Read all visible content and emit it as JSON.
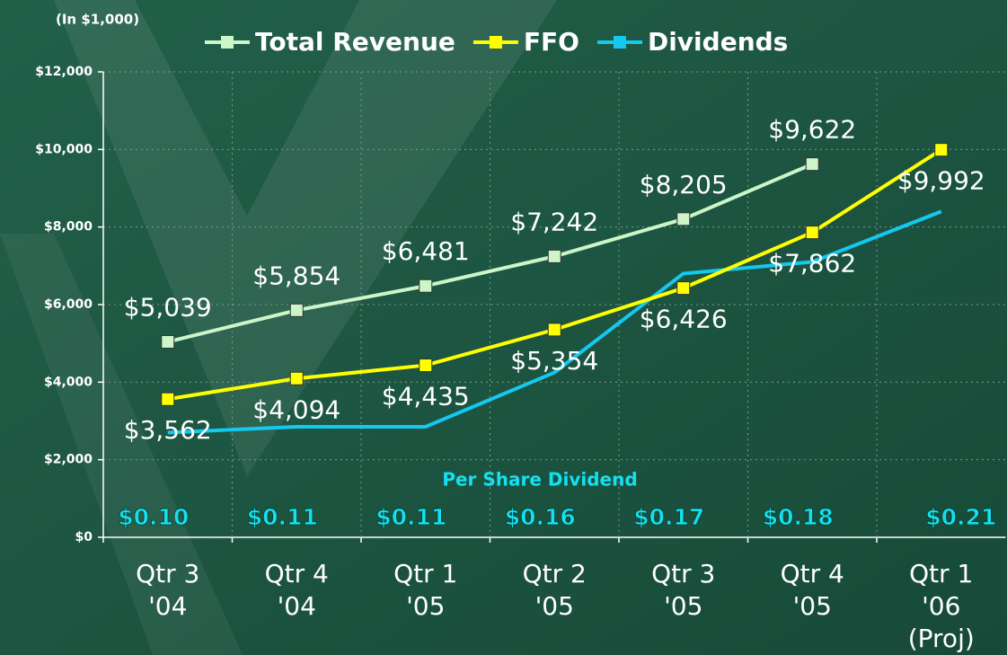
{
  "chart_data": {
    "type": "line",
    "unit_label": "(In $1,000)",
    "categories": [
      [
        "Qtr 3",
        "'04"
      ],
      [
        "Qtr 4",
        "'04"
      ],
      [
        "Qtr 1",
        "'05"
      ],
      [
        "Qtr 2",
        "'05"
      ],
      [
        "Qtr 3",
        "'05"
      ],
      [
        "Qtr 4",
        "'05"
      ],
      [
        "Qtr 1",
        "'06",
        "(Proj)"
      ]
    ],
    "series": [
      {
        "name": "Total Revenue",
        "color": "#ccf5c8",
        "values": [
          5039,
          5854,
          6481,
          7242,
          8205,
          9622,
          null
        ],
        "value_labels": [
          "$5,039",
          "$5,854",
          "$6,481",
          "$7,242",
          "$8,205",
          "$9,622",
          null
        ]
      },
      {
        "name": "FFO",
        "color": "#ffff00",
        "values": [
          3562,
          4094,
          4435,
          5354,
          6426,
          7862,
          9992
        ],
        "value_labels": [
          "$3,562",
          "$4,094",
          "$4,435",
          "$5,354",
          "$6,426",
          "$7,862",
          "$9,992"
        ]
      },
      {
        "name": "Dividends",
        "color": "#14c8f0",
        "values": [
          2700,
          2850,
          2850,
          4250,
          6800,
          7100,
          8400
        ]
      }
    ],
    "per_share_dividend": {
      "title": "Per Share Dividend",
      "values": [
        0.1,
        0.11,
        0.11,
        0.16,
        0.17,
        0.18,
        0.21
      ],
      "value_labels": [
        "$0.10",
        "$0.11",
        "$0.11",
        "$0.16",
        "$0.17",
        "$0.18",
        "$0.21"
      ]
    },
    "ylim": [
      0,
      12000
    ],
    "yticks": [
      {
        "value": 0,
        "label": "$0"
      },
      {
        "value": 2000,
        "label": "$2,000"
      },
      {
        "value": 4000,
        "label": "$4,000"
      },
      {
        "value": 6000,
        "label": "$6,000"
      },
      {
        "value": 8000,
        "label": "$8,000"
      },
      {
        "value": 10000,
        "label": "$10,000"
      },
      {
        "value": 12000,
        "label": "$12,000"
      }
    ],
    "grid": true,
    "legend": "top"
  }
}
